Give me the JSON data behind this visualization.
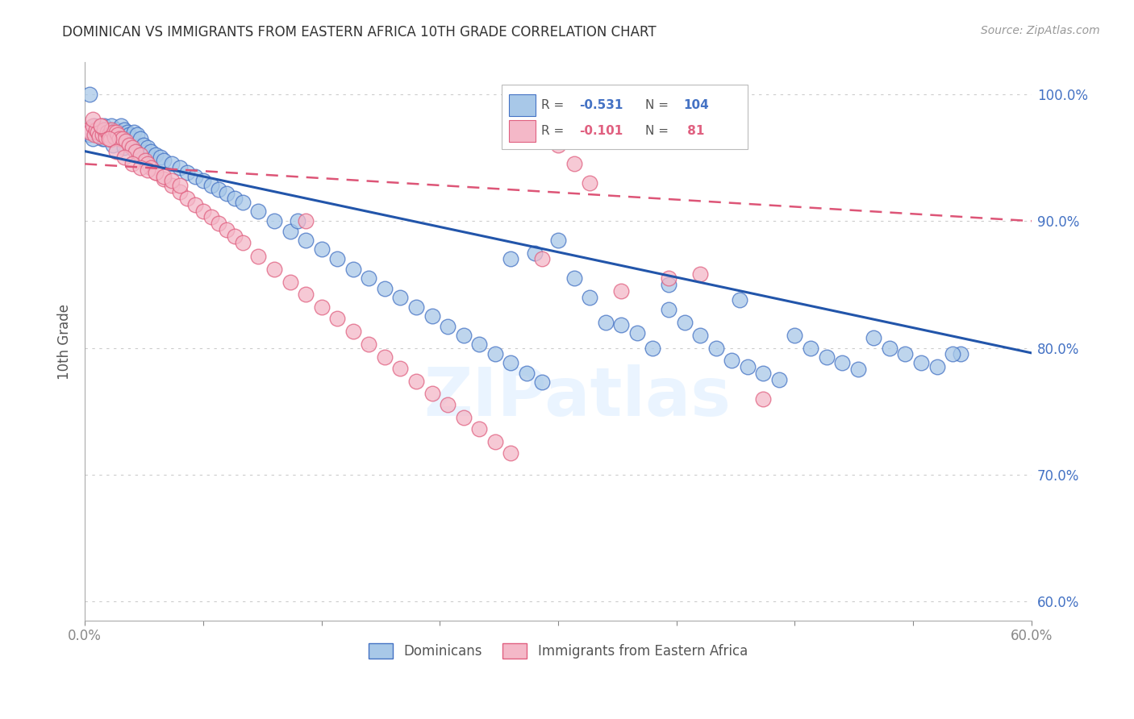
{
  "title": "DOMINICAN VS IMMIGRANTS FROM EASTERN AFRICA 10TH GRADE CORRELATION CHART",
  "source": "Source: ZipAtlas.com",
  "ylabel": "10th Grade",
  "ylabel_right_ticks": [
    "100.0%",
    "90.0%",
    "80.0%",
    "70.0%",
    "60.0%"
  ],
  "ylabel_right_vals": [
    1.0,
    0.9,
    0.8,
    0.7,
    0.6
  ],
  "xmin": 0.0,
  "xmax": 0.6,
  "ymin": 0.585,
  "ymax": 1.025,
  "blue_color": "#a8c8e8",
  "blue_edge_color": "#4472c4",
  "pink_color": "#f4b8c8",
  "pink_edge_color": "#e06080",
  "blue_line_color": "#2255aa",
  "pink_line_color": "#dd5577",
  "watermark": "ZIPatlas",
  "blue_r": -0.531,
  "blue_n": 104,
  "blue_intercept": 0.955,
  "blue_slope": -0.265,
  "pink_r": -0.101,
  "pink_n": 81,
  "pink_intercept": 0.945,
  "pink_slope": -0.075,
  "blue_x": [
    0.002,
    0.003,
    0.004,
    0.005,
    0.006,
    0.007,
    0.008,
    0.009,
    0.01,
    0.011,
    0.012,
    0.013,
    0.014,
    0.015,
    0.016,
    0.017,
    0.018,
    0.019,
    0.02,
    0.021,
    0.022,
    0.023,
    0.024,
    0.025,
    0.026,
    0.027,
    0.028,
    0.03,
    0.031,
    0.033,
    0.035,
    0.037,
    0.04,
    0.042,
    0.045,
    0.048,
    0.05,
    0.055,
    0.06,
    0.065,
    0.07,
    0.075,
    0.08,
    0.085,
    0.09,
    0.095,
    0.1,
    0.11,
    0.12,
    0.13,
    0.14,
    0.15,
    0.16,
    0.17,
    0.18,
    0.19,
    0.2,
    0.21,
    0.22,
    0.23,
    0.24,
    0.25,
    0.26,
    0.27,
    0.28,
    0.29,
    0.3,
    0.31,
    0.32,
    0.33,
    0.34,
    0.35,
    0.36,
    0.37,
    0.38,
    0.39,
    0.4,
    0.41,
    0.42,
    0.43,
    0.44,
    0.45,
    0.46,
    0.47,
    0.48,
    0.49,
    0.5,
    0.51,
    0.52,
    0.53,
    0.54,
    0.003,
    0.008,
    0.012,
    0.018,
    0.025,
    0.032,
    0.285,
    0.37,
    0.555,
    0.135,
    0.27,
    0.415,
    0.55
  ],
  "blue_y": [
    0.97,
    0.968,
    0.972,
    0.965,
    0.975,
    0.97,
    0.968,
    0.973,
    0.97,
    0.965,
    0.975,
    0.968,
    0.972,
    0.97,
    0.965,
    0.975,
    0.97,
    0.968,
    0.972,
    0.97,
    0.966,
    0.975,
    0.968,
    0.972,
    0.965,
    0.97,
    0.968,
    0.965,
    0.97,
    0.968,
    0.965,
    0.96,
    0.958,
    0.955,
    0.952,
    0.95,
    0.948,
    0.945,
    0.942,
    0.938,
    0.935,
    0.932,
    0.928,
    0.925,
    0.922,
    0.918,
    0.915,
    0.908,
    0.9,
    0.892,
    0.885,
    0.878,
    0.87,
    0.862,
    0.855,
    0.847,
    0.84,
    0.832,
    0.825,
    0.817,
    0.81,
    0.803,
    0.795,
    0.788,
    0.78,
    0.773,
    0.885,
    0.855,
    0.84,
    0.82,
    0.818,
    0.812,
    0.8,
    0.83,
    0.82,
    0.81,
    0.8,
    0.79,
    0.785,
    0.78,
    0.775,
    0.81,
    0.8,
    0.793,
    0.788,
    0.783,
    0.808,
    0.8,
    0.795,
    0.788,
    0.785,
    1.0,
    0.97,
    0.965,
    0.96,
    0.958,
    0.955,
    0.875,
    0.85,
    0.795,
    0.9,
    0.87,
    0.838,
    0.795
  ],
  "pink_x": [
    0.002,
    0.003,
    0.005,
    0.006,
    0.007,
    0.008,
    0.009,
    0.01,
    0.011,
    0.012,
    0.013,
    0.014,
    0.015,
    0.016,
    0.017,
    0.018,
    0.019,
    0.02,
    0.021,
    0.022,
    0.024,
    0.026,
    0.028,
    0.03,
    0.032,
    0.035,
    0.038,
    0.04,
    0.042,
    0.045,
    0.05,
    0.055,
    0.06,
    0.065,
    0.07,
    0.075,
    0.08,
    0.085,
    0.09,
    0.095,
    0.1,
    0.11,
    0.12,
    0.13,
    0.14,
    0.15,
    0.16,
    0.17,
    0.18,
    0.19,
    0.2,
    0.21,
    0.22,
    0.23,
    0.24,
    0.25,
    0.26,
    0.27,
    0.28,
    0.29,
    0.3,
    0.31,
    0.32,
    0.005,
    0.01,
    0.015,
    0.02,
    0.025,
    0.03,
    0.035,
    0.04,
    0.045,
    0.05,
    0.055,
    0.06,
    0.14,
    0.29,
    0.34,
    0.37,
    0.39,
    0.43
  ],
  "pink_y": [
    0.972,
    0.97,
    0.975,
    0.968,
    0.972,
    0.97,
    0.967,
    0.975,
    0.968,
    0.972,
    0.966,
    0.97,
    0.968,
    0.964,
    0.972,
    0.97,
    0.966,
    0.97,
    0.968,
    0.965,
    0.965,
    0.963,
    0.96,
    0.958,
    0.955,
    0.952,
    0.948,
    0.945,
    0.942,
    0.938,
    0.933,
    0.928,
    0.923,
    0.918,
    0.913,
    0.908,
    0.903,
    0.898,
    0.893,
    0.888,
    0.883,
    0.872,
    0.862,
    0.852,
    0.842,
    0.832,
    0.823,
    0.813,
    0.803,
    0.793,
    0.784,
    0.774,
    0.764,
    0.755,
    0.745,
    0.736,
    0.726,
    0.717,
    0.99,
    0.975,
    0.96,
    0.945,
    0.93,
    0.98,
    0.975,
    0.965,
    0.955,
    0.95,
    0.945,
    0.942,
    0.94,
    0.938,
    0.935,
    0.932,
    0.928,
    0.9,
    0.87,
    0.845,
    0.855,
    0.858,
    0.76
  ]
}
